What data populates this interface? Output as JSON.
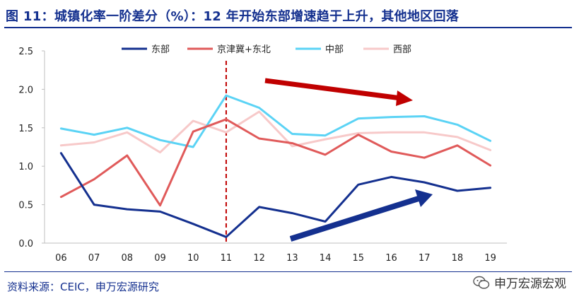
{
  "title": "图 11：城镇化率一阶差分（%）：12 年开始东部增速趋于上升，其他地区回落",
  "source": "资料来源：CEIC，申万宏源研究",
  "watermark": "申万宏源宏观",
  "chart_data": {
    "type": "line",
    "categories": [
      "06",
      "07",
      "08",
      "09",
      "10",
      "11",
      "12",
      "13",
      "14",
      "15",
      "16",
      "17",
      "18",
      "19"
    ],
    "ylim": [
      0,
      2.5
    ],
    "yticks": [
      "0.0",
      "0.5",
      "1.0",
      "1.5",
      "2.0",
      "2.5"
    ],
    "series": [
      {
        "name": "东部",
        "color": "#14308f",
        "values": [
          1.17,
          0.5,
          0.44,
          0.41,
          0.25,
          0.08,
          0.47,
          0.39,
          0.28,
          0.76,
          0.86,
          0.79,
          0.68,
          0.72
        ]
      },
      {
        "name": "京津冀+东北",
        "color": "#e05a5a",
        "values": [
          0.6,
          0.83,
          1.14,
          0.49,
          1.45,
          1.61,
          1.36,
          1.3,
          1.15,
          1.41,
          1.19,
          1.11,
          1.27,
          1.01
        ]
      },
      {
        "name": "中部",
        "color": "#5bd3f5",
        "values": [
          1.49,
          1.41,
          1.5,
          1.34,
          1.25,
          1.92,
          1.76,
          1.42,
          1.4,
          1.62,
          1.64,
          1.65,
          1.54,
          1.33
        ]
      },
      {
        "name": "西部",
        "color": "#f7c9c9",
        "values": [
          1.27,
          1.31,
          1.44,
          1.18,
          1.59,
          1.44,
          1.71,
          1.26,
          1.35,
          1.43,
          1.44,
          1.44,
          1.38,
          1.21
        ]
      }
    ],
    "marker_line_at": "11",
    "grid": false,
    "legend_position": "top"
  }
}
